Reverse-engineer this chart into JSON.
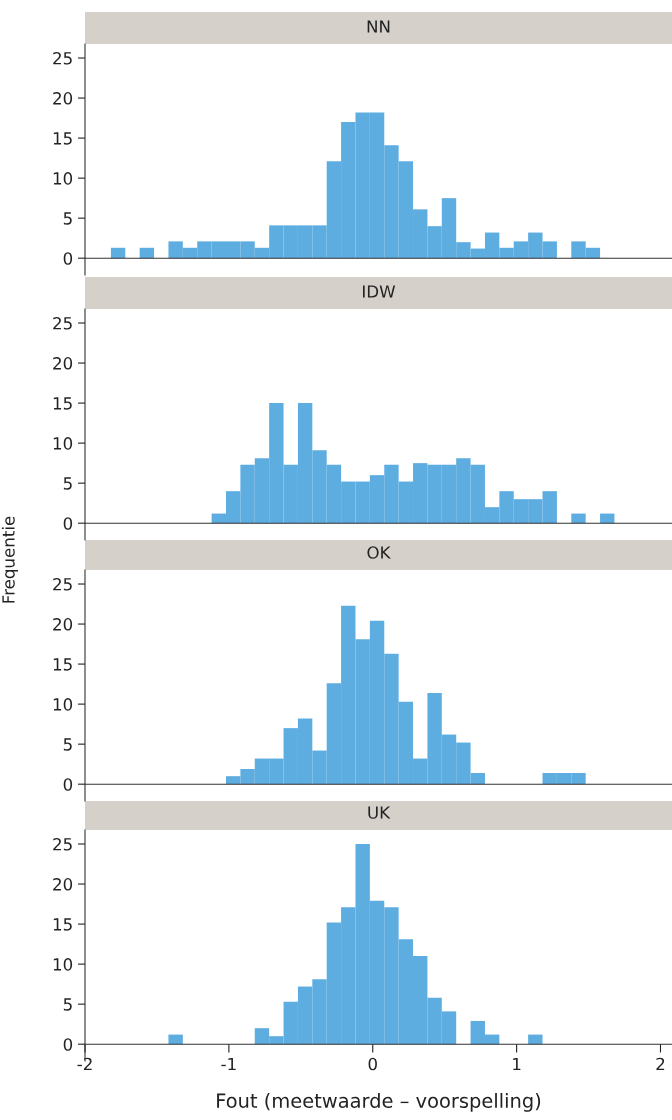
{
  "chart_data": [
    {
      "type": "histogram",
      "title": "NN",
      "color": "#5dade0",
      "tick_labels": "y",
      "xlim": [
        -2,
        2.08
      ],
      "ylim": [
        -2.1,
        26.75
      ],
      "yticks": [
        0,
        5,
        10,
        15,
        20,
        25
      ],
      "bins": [
        -1.82,
        -1.72,
        -1.62,
        -1.52,
        -1.42,
        -1.32,
        -1.22,
        -1.12,
        -1.02,
        -0.92,
        -0.82,
        -0.72,
        -0.62,
        -0.52,
        -0.42,
        -0.32,
        -0.22,
        -0.12,
        -0.02,
        0.08,
        0.18,
        0.28,
        0.38,
        0.48,
        0.58,
        0.68,
        0.78,
        0.88,
        0.98,
        1.08,
        1.18,
        1.28,
        1.38,
        1.48,
        1.58,
        1.68
      ],
      "values": [
        1.3,
        0,
        1.3,
        0,
        2.1,
        1.3,
        2.1,
        2.1,
        2.1,
        2.1,
        1.3,
        4.1,
        4.1,
        4.1,
        4.1,
        12.1,
        17,
        18.2,
        18.2,
        14.1,
        12.1,
        6.1,
        4,
        7.5,
        2,
        1.2,
        3.2,
        1.3,
        2.1,
        3.2,
        2.1,
        0,
        2.1,
        1.3,
        0
      ]
    },
    {
      "type": "histogram",
      "title": "IDW",
      "ylabel": "Frequentie",
      "color": "#5dade0",
      "tick_labels": "y",
      "xlim": [
        -2,
        2.08
      ],
      "ylim": [
        -2.1,
        26.75
      ],
      "yticks": [
        0,
        5,
        10,
        15,
        20,
        25
      ],
      "bins": [
        -1.82,
        -1.72,
        -1.62,
        -1.52,
        -1.42,
        -1.32,
        -1.22,
        -1.12,
        -1.02,
        -0.92,
        -0.82,
        -0.72,
        -0.62,
        -0.52,
        -0.42,
        -0.32,
        -0.22,
        -0.12,
        -0.02,
        0.08,
        0.18,
        0.28,
        0.38,
        0.48,
        0.58,
        0.68,
        0.78,
        0.88,
        0.98,
        1.08,
        1.18,
        1.28,
        1.38,
        1.48,
        1.58,
        1.68
      ],
      "values": [
        0,
        0,
        0,
        0,
        0,
        0,
        0,
        1.2,
        4,
        7.3,
        8.1,
        15,
        7.3,
        15,
        9.1,
        7.3,
        5.2,
        5.2,
        6,
        7.3,
        5.2,
        7.5,
        7.3,
        7.3,
        8.1,
        7.3,
        2,
        4,
        3,
        3,
        4,
        0,
        1.2,
        0,
        1.2
      ]
    },
    {
      "type": "histogram",
      "title": "OK",
      "color": "#5dade0",
      "tick_labels": "y",
      "xlim": [
        -2,
        2.08
      ],
      "ylim": [
        -2.1,
        26.75
      ],
      "yticks": [
        0,
        5,
        10,
        15,
        20,
        25
      ],
      "bins": [
        -1.82,
        -1.72,
        -1.62,
        -1.52,
        -1.42,
        -1.32,
        -1.22,
        -1.12,
        -1.02,
        -0.92,
        -0.82,
        -0.72,
        -0.62,
        -0.52,
        -0.42,
        -0.32,
        -0.22,
        -0.12,
        -0.02,
        0.08,
        0.18,
        0.28,
        0.38,
        0.48,
        0.58,
        0.68,
        0.78,
        0.88,
        0.98,
        1.08,
        1.18,
        1.28,
        1.38,
        1.48,
        1.58,
        1.68
      ],
      "values": [
        0,
        0,
        0,
        0,
        0,
        0,
        0,
        0,
        1,
        1.9,
        3.2,
        3.2,
        7,
        8.2,
        4.2,
        12.6,
        22.3,
        18.1,
        20.4,
        16.3,
        10.3,
        3.2,
        11.4,
        6.2,
        5.2,
        1.4,
        0,
        0,
        0,
        0,
        1.4,
        1.4,
        1.4,
        0,
        0
      ]
    },
    {
      "type": "histogram",
      "title": "UK",
      "xlabel": "Fout (meetwaarde – voorspelling)",
      "color": "#5dade0",
      "xlim": [
        -2,
        2.08
      ],
      "ylim": [
        -2.1,
        26.75
      ],
      "xticks": [
        -2,
        -1,
        0,
        1,
        2
      ],
      "yticks": [
        0,
        5,
        10,
        15,
        20,
        25
      ],
      "bins": [
        -1.82,
        -1.72,
        -1.62,
        -1.52,
        -1.42,
        -1.32,
        -1.22,
        -1.12,
        -1.02,
        -0.92,
        -0.82,
        -0.72,
        -0.62,
        -0.52,
        -0.42,
        -0.32,
        -0.22,
        -0.12,
        -0.02,
        0.08,
        0.18,
        0.28,
        0.38,
        0.48,
        0.58,
        0.68,
        0.78,
        0.88,
        0.98,
        1.08,
        1.18,
        1.28,
        1.38,
        1.48,
        1.58,
        1.68
      ],
      "values": [
        0,
        0,
        0,
        0,
        1.2,
        0,
        0,
        0,
        0,
        0,
        2,
        1,
        5.3,
        7.2,
        8.1,
        15.2,
        17.1,
        25,
        17.9,
        17.1,
        13.1,
        11,
        5.8,
        4.1,
        0,
        2.9,
        1.2,
        0,
        0,
        1.2,
        0,
        0,
        0,
        0,
        0
      ]
    }
  ]
}
